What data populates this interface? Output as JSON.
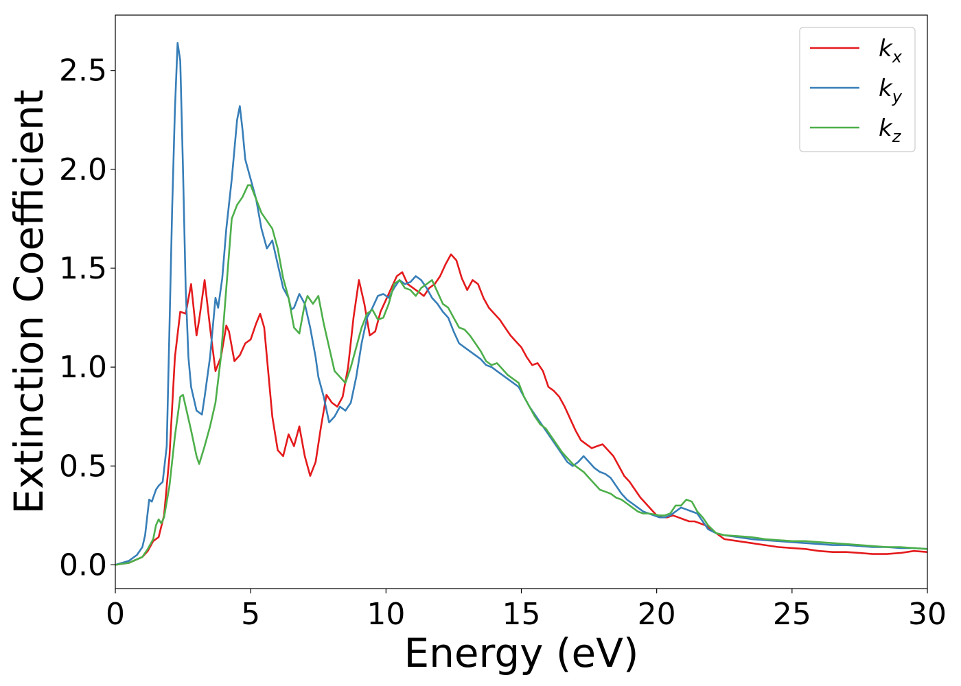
{
  "chart_data": {
    "type": "line",
    "xlabel": "Energy (eV)",
    "ylabel": "Extinction Coefficient",
    "xlim": [
      0,
      30
    ],
    "ylim": [
      -0.12,
      2.78
    ],
    "xticks": [
      0,
      5,
      10,
      15,
      20,
      25,
      30
    ],
    "xtick_labels": [
      "0",
      "5",
      "10",
      "15",
      "20",
      "25",
      "30"
    ],
    "yticks": [
      0.0,
      0.5,
      1.0,
      1.5,
      2.0,
      2.5
    ],
    "ytick_labels": [
      "0.0",
      "0.5",
      "1.0",
      "1.5",
      "2.0",
      "2.5"
    ],
    "grid": false,
    "legend_position": "top-right",
    "series": [
      {
        "name": "k",
        "subscript": "x",
        "color": "#e41a1c",
        "x": [
          0,
          0.5,
          1.0,
          1.2,
          1.4,
          1.6,
          1.8,
          2.0,
          2.2,
          2.4,
          2.6,
          2.8,
          3.0,
          3.1,
          3.3,
          3.5,
          3.7,
          3.9,
          4.1,
          4.2,
          4.4,
          4.6,
          4.8,
          5.0,
          5.2,
          5.35,
          5.5,
          5.8,
          6.0,
          6.2,
          6.4,
          6.6,
          6.8,
          7.0,
          7.2,
          7.4,
          7.6,
          7.8,
          8.0,
          8.2,
          8.4,
          8.6,
          8.8,
          9.0,
          9.2,
          9.4,
          9.6,
          9.8,
          10.0,
          10.2,
          10.4,
          10.6,
          10.8,
          11.0,
          11.2,
          11.4,
          11.6,
          11.8,
          12.0,
          12.2,
          12.4,
          12.6,
          12.8,
          13.0,
          13.2,
          13.4,
          13.6,
          13.8,
          14.0,
          14.2,
          14.4,
          14.6,
          14.8,
          15.0,
          15.2,
          15.4,
          15.6,
          15.8,
          16.0,
          16.2,
          16.4,
          16.6,
          16.8,
          17.0,
          17.2,
          17.4,
          17.6,
          17.8,
          18.0,
          18.2,
          18.4,
          18.6,
          18.8,
          19.0,
          19.2,
          19.4,
          19.6,
          19.8,
          20.0,
          20.2,
          20.4,
          20.6,
          20.8,
          21.0,
          21.2,
          21.4,
          21.6,
          21.8,
          22.0,
          22.5,
          23.0,
          23.5,
          24.0,
          24.5,
          25.0,
          25.5,
          26.0,
          26.5,
          27.0,
          27.5,
          28.0,
          28.5,
          29.0,
          29.5,
          30.0
        ],
        "y": [
          0.0,
          0.01,
          0.04,
          0.07,
          0.12,
          0.14,
          0.25,
          0.55,
          1.05,
          1.28,
          1.27,
          1.42,
          1.16,
          1.24,
          1.44,
          1.2,
          0.98,
          1.05,
          1.21,
          1.18,
          1.03,
          1.06,
          1.12,
          1.14,
          1.22,
          1.27,
          1.2,
          0.75,
          0.58,
          0.55,
          0.66,
          0.6,
          0.7,
          0.55,
          0.45,
          0.52,
          0.7,
          0.86,
          0.82,
          0.8,
          0.85,
          1.0,
          1.25,
          1.44,
          1.32,
          1.16,
          1.18,
          1.28,
          1.34,
          1.4,
          1.46,
          1.48,
          1.42,
          1.4,
          1.38,
          1.36,
          1.4,
          1.42,
          1.46,
          1.52,
          1.57,
          1.54,
          1.45,
          1.39,
          1.44,
          1.42,
          1.35,
          1.3,
          1.27,
          1.24,
          1.2,
          1.16,
          1.13,
          1.1,
          1.05,
          1.01,
          1.02,
          0.98,
          0.9,
          0.88,
          0.85,
          0.8,
          0.74,
          0.68,
          0.63,
          0.61,
          0.59,
          0.6,
          0.61,
          0.58,
          0.55,
          0.5,
          0.45,
          0.42,
          0.38,
          0.34,
          0.31,
          0.28,
          0.25,
          0.24,
          0.24,
          0.25,
          0.24,
          0.23,
          0.22,
          0.22,
          0.21,
          0.2,
          0.18,
          0.13,
          0.12,
          0.11,
          0.1,
          0.09,
          0.085,
          0.08,
          0.07,
          0.065,
          0.065,
          0.06,
          0.055,
          0.055,
          0.06,
          0.07,
          0.065
        ]
      },
      {
        "name": "k",
        "subscript": "y",
        "color": "#377eb8",
        "x": [
          0,
          0.5,
          0.8,
          1.0,
          1.1,
          1.25,
          1.35,
          1.5,
          1.6,
          1.75,
          1.9,
          2.0,
          2.1,
          2.2,
          2.3,
          2.4,
          2.5,
          2.6,
          2.7,
          2.8,
          3.0,
          3.2,
          3.3,
          3.5,
          3.7,
          3.8,
          3.95,
          4.1,
          4.3,
          4.5,
          4.6,
          4.7,
          4.8,
          5.0,
          5.2,
          5.4,
          5.6,
          5.8,
          6.0,
          6.2,
          6.4,
          6.5,
          6.6,
          6.8,
          7.0,
          7.2,
          7.4,
          7.5,
          7.7,
          7.9,
          8.1,
          8.3,
          8.5,
          8.7,
          8.9,
          9.1,
          9.3,
          9.5,
          9.7,
          9.9,
          10.1,
          10.3,
          10.5,
          10.7,
          10.9,
          11.1,
          11.3,
          11.5,
          11.7,
          11.9,
          12.1,
          12.3,
          12.5,
          12.7,
          12.9,
          13.1,
          13.3,
          13.5,
          13.7,
          13.9,
          14.1,
          14.3,
          14.5,
          14.7,
          14.9,
          15.1,
          15.3,
          15.5,
          15.7,
          15.9,
          16.1,
          16.3,
          16.5,
          16.7,
          16.9,
          17.1,
          17.3,
          17.5,
          17.7,
          17.9,
          18.1,
          18.3,
          18.5,
          18.7,
          18.9,
          19.1,
          19.3,
          19.5,
          19.7,
          19.9,
          20.1,
          20.3,
          20.5,
          20.7,
          20.9,
          21.1,
          21.3,
          21.5,
          21.7,
          21.9,
          22.2,
          22.5,
          23.0,
          23.5,
          24.0,
          24.5,
          25.0,
          25.5,
          26.0,
          26.5,
          27.0,
          27.5,
          28.0,
          28.5,
          29.0,
          29.5,
          30.0
        ],
        "y": [
          0.0,
          0.02,
          0.05,
          0.09,
          0.15,
          0.33,
          0.32,
          0.38,
          0.4,
          0.42,
          0.6,
          1.2,
          1.8,
          2.3,
          2.64,
          2.55,
          2.0,
          1.4,
          1.05,
          0.9,
          0.78,
          0.76,
          0.85,
          1.05,
          1.35,
          1.3,
          1.45,
          1.7,
          1.95,
          2.25,
          2.32,
          2.2,
          2.05,
          1.95,
          1.85,
          1.7,
          1.6,
          1.64,
          1.52,
          1.4,
          1.35,
          1.29,
          1.3,
          1.37,
          1.32,
          1.2,
          1.05,
          0.95,
          0.85,
          0.72,
          0.75,
          0.8,
          0.78,
          0.82,
          0.95,
          1.12,
          1.25,
          1.3,
          1.36,
          1.37,
          1.35,
          1.4,
          1.44,
          1.42,
          1.43,
          1.46,
          1.44,
          1.4,
          1.35,
          1.32,
          1.28,
          1.25,
          1.18,
          1.12,
          1.1,
          1.08,
          1.06,
          1.04,
          1.01,
          1.0,
          0.98,
          0.96,
          0.94,
          0.92,
          0.9,
          0.85,
          0.8,
          0.76,
          0.72,
          0.68,
          0.64,
          0.6,
          0.56,
          0.52,
          0.5,
          0.52,
          0.55,
          0.52,
          0.49,
          0.47,
          0.46,
          0.44,
          0.4,
          0.36,
          0.33,
          0.31,
          0.29,
          0.27,
          0.26,
          0.25,
          0.24,
          0.24,
          0.25,
          0.27,
          0.29,
          0.28,
          0.27,
          0.26,
          0.22,
          0.18,
          0.16,
          0.15,
          0.14,
          0.13,
          0.125,
          0.12,
          0.115,
          0.11,
          0.105,
          0.1,
          0.1,
          0.095,
          0.09,
          0.09,
          0.085,
          0.085,
          0.08
        ]
      },
      {
        "name": "k",
        "subscript": "z",
        "color": "#4daf4a",
        "x": [
          0,
          0.5,
          1.0,
          1.2,
          1.4,
          1.5,
          1.6,
          1.7,
          1.8,
          2.0,
          2.2,
          2.4,
          2.5,
          2.6,
          2.8,
          3.0,
          3.1,
          3.3,
          3.5,
          3.7,
          3.9,
          4.1,
          4.3,
          4.5,
          4.7,
          4.9,
          5.0,
          5.2,
          5.4,
          5.6,
          5.8,
          6.0,
          6.2,
          6.4,
          6.6,
          6.8,
          7.0,
          7.1,
          7.3,
          7.5,
          7.7,
          7.9,
          8.1,
          8.3,
          8.5,
          8.7,
          8.9,
          9.1,
          9.3,
          9.5,
          9.7,
          9.9,
          10.1,
          10.3,
          10.5,
          10.7,
          10.9,
          11.1,
          11.3,
          11.5,
          11.7,
          11.9,
          12.1,
          12.3,
          12.5,
          12.7,
          12.9,
          13.1,
          13.3,
          13.5,
          13.7,
          13.9,
          14.1,
          14.3,
          14.5,
          14.7,
          14.9,
          15.1,
          15.3,
          15.5,
          15.7,
          15.9,
          16.1,
          16.3,
          16.5,
          16.7,
          16.9,
          17.1,
          17.3,
          17.5,
          17.7,
          17.9,
          18.1,
          18.3,
          18.5,
          18.7,
          18.9,
          19.1,
          19.3,
          19.5,
          19.7,
          19.9,
          20.1,
          20.3,
          20.5,
          20.7,
          20.9,
          21.1,
          21.3,
          21.5,
          21.7,
          21.9,
          22.2,
          22.5,
          23.0,
          23.5,
          24.0,
          24.5,
          25.0,
          25.5,
          26.0,
          26.5,
          27.0,
          27.5,
          28.0,
          28.5,
          29.0,
          29.5,
          30.0
        ],
        "y": [
          0.0,
          0.01,
          0.04,
          0.08,
          0.13,
          0.2,
          0.23,
          0.21,
          0.24,
          0.4,
          0.65,
          0.85,
          0.86,
          0.8,
          0.68,
          0.55,
          0.51,
          0.6,
          0.7,
          0.82,
          1.05,
          1.4,
          1.75,
          1.82,
          1.86,
          1.92,
          1.92,
          1.85,
          1.78,
          1.74,
          1.7,
          1.6,
          1.45,
          1.35,
          1.2,
          1.17,
          1.32,
          1.36,
          1.32,
          1.36,
          1.22,
          1.1,
          0.98,
          0.95,
          0.92,
          1.0,
          1.1,
          1.2,
          1.27,
          1.29,
          1.24,
          1.25,
          1.32,
          1.42,
          1.44,
          1.4,
          1.39,
          1.36,
          1.4,
          1.42,
          1.44,
          1.38,
          1.32,
          1.3,
          1.25,
          1.2,
          1.19,
          1.16,
          1.12,
          1.08,
          1.03,
          1.01,
          1.02,
          0.99,
          0.96,
          0.94,
          0.92,
          0.85,
          0.8,
          0.75,
          0.71,
          0.69,
          0.65,
          0.61,
          0.57,
          0.54,
          0.51,
          0.49,
          0.47,
          0.44,
          0.41,
          0.38,
          0.37,
          0.36,
          0.34,
          0.33,
          0.31,
          0.29,
          0.27,
          0.26,
          0.26,
          0.255,
          0.25,
          0.25,
          0.26,
          0.3,
          0.3,
          0.33,
          0.32,
          0.27,
          0.24,
          0.2,
          0.16,
          0.15,
          0.145,
          0.14,
          0.13,
          0.125,
          0.12,
          0.12,
          0.115,
          0.11,
          0.105,
          0.1,
          0.095,
          0.09,
          0.09,
          0.085,
          0.08
        ]
      }
    ]
  }
}
